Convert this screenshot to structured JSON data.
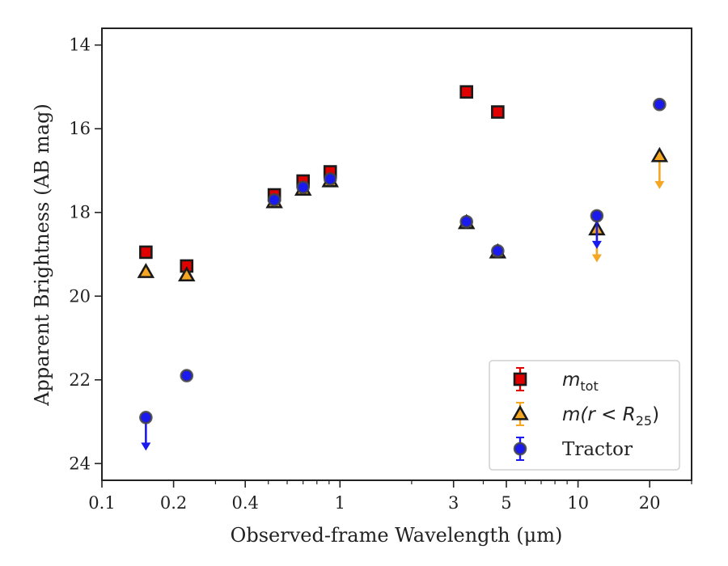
{
  "chart_data": {
    "type": "scatter",
    "xlabel": "Observed-frame Wavelength (μm)",
    "ylabel": "Apparent Brightness (AB mag)",
    "xscale": "log",
    "xlim": [
      0.1,
      30
    ],
    "ylim": [
      24.4,
      13.6
    ],
    "y_inverted": true,
    "x_ticks": [
      {
        "value": 0.1,
        "label": "0.1"
      },
      {
        "value": 0.2,
        "label": "0.2"
      },
      {
        "value": 0.4,
        "label": "0.4"
      },
      {
        "value": 1,
        "label": "1"
      },
      {
        "value": 3,
        "label": "3"
      },
      {
        "value": 5,
        "label": "5"
      },
      {
        "value": 10,
        "label": "10"
      },
      {
        "value": 20,
        "label": "20"
      }
    ],
    "y_ticks": [
      {
        "value": 14,
        "label": "14"
      },
      {
        "value": 16,
        "label": "16"
      },
      {
        "value": 18,
        "label": "18"
      },
      {
        "value": 20,
        "label": "20"
      },
      {
        "value": 22,
        "label": "22"
      },
      {
        "value": 24,
        "label": "24"
      }
    ],
    "legend_position": "lower right",
    "series": [
      {
        "name": "m_tot",
        "legend_label": "m",
        "legend_sub": "tot",
        "marker": "square",
        "color": "#e00000",
        "errcolor": "#e00000",
        "points": [
          {
            "x": 0.153,
            "y": 18.95
          },
          {
            "x": 0.227,
            "y": 19.28
          },
          {
            "x": 0.53,
            "y": 17.58
          },
          {
            "x": 0.7,
            "y": 17.25
          },
          {
            "x": 0.91,
            "y": 17.03
          },
          {
            "x": 3.4,
            "y": 15.12
          },
          {
            "x": 4.6,
            "y": 15.6
          }
        ]
      },
      {
        "name": "m(r < R25)",
        "legend_label": "m(r < R",
        "legend_sub": "25",
        "legend_suffix": ")",
        "marker": "triangle",
        "color": "#f5a623",
        "errcolor": "#f5a623",
        "points": [
          {
            "x": 0.153,
            "y": 19.42
          },
          {
            "x": 0.227,
            "y": 19.5
          },
          {
            "x": 0.53,
            "y": 17.75
          },
          {
            "x": 0.7,
            "y": 17.45
          },
          {
            "x": 0.91,
            "y": 17.25
          },
          {
            "x": 3.4,
            "y": 18.25
          },
          {
            "x": 4.6,
            "y": 18.95
          },
          {
            "x": 12,
            "y": 18.4,
            "upper_limit": true
          },
          {
            "x": 22,
            "y": 16.65,
            "upper_limit": true
          }
        ]
      },
      {
        "name": "Tractor",
        "legend_label": "Tractor",
        "marker": "circle",
        "color": "#1a1aee",
        "errcolor": "#1a1aee",
        "points": [
          {
            "x": 0.153,
            "y": 22.9,
            "upper_limit": true
          },
          {
            "x": 0.227,
            "y": 21.9
          },
          {
            "x": 0.53,
            "y": 17.7
          },
          {
            "x": 0.7,
            "y": 17.4
          },
          {
            "x": 0.91,
            "y": 17.2
          },
          {
            "x": 3.4,
            "y": 18.22
          },
          {
            "x": 4.6,
            "y": 18.92
          },
          {
            "x": 12,
            "y": 18.08,
            "upper_limit": true
          },
          {
            "x": 22,
            "y": 15.42
          }
        ]
      }
    ]
  }
}
